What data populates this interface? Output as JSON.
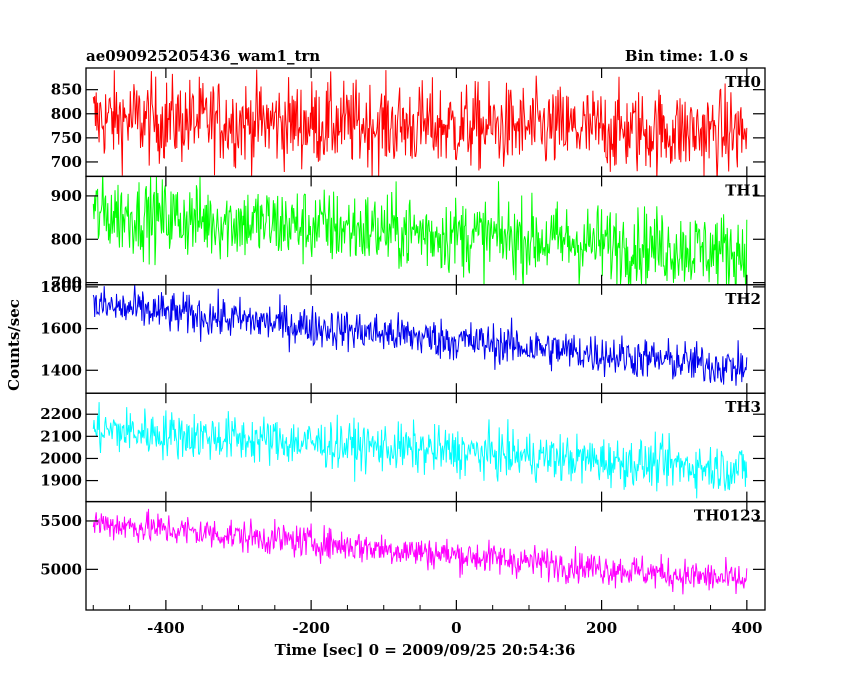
{
  "chart_data": {
    "type": "line",
    "title": "ae090925205436_wam1_trn",
    "bin_time": "Bin time: 1.0 s",
    "xlabel": "Time [sec] 0 = 2009/09/25 20:54:36",
    "ylabel": "Counts/sec",
    "xlim": [
      -510,
      425
    ],
    "xticks": [
      -400,
      -200,
      0,
      200,
      400
    ],
    "x_range": [
      -500,
      400
    ],
    "panels": [
      {
        "name": "TH0",
        "color": "#ff0000",
        "ylim": [
          670,
          895
        ],
        "yticks": [
          700,
          750,
          800,
          850
        ],
        "trend_start": 790,
        "trend_end": 760,
        "noise": 45
      },
      {
        "name": "TH1",
        "color": "#00ff00",
        "ylim": [
          695,
          945
        ],
        "yticks": [
          700,
          800,
          900
        ],
        "trend_start": 860,
        "trend_end": 770,
        "noise": 45
      },
      {
        "name": "TH2",
        "color": "#0000ee",
        "ylim": [
          1290,
          1810
        ],
        "yticks": [
          1400,
          1600,
          1800
        ],
        "trend_start": 1710,
        "trend_end": 1410,
        "noise": 50
      },
      {
        "name": "TH3",
        "color": "#00ffff",
        "ylim": [
          1805,
          2295
        ],
        "yticks": [
          1900,
          2000,
          2100,
          2200
        ],
        "trend_start": 2130,
        "trend_end": 1950,
        "noise": 55
      },
      {
        "name": "TH0123",
        "color": "#ff00ff",
        "ylim": [
          4580,
          5700
        ],
        "yticks": [
          5000,
          5500
        ],
        "trend_start": 5480,
        "trend_end": 4880,
        "noise": 85
      }
    ]
  }
}
